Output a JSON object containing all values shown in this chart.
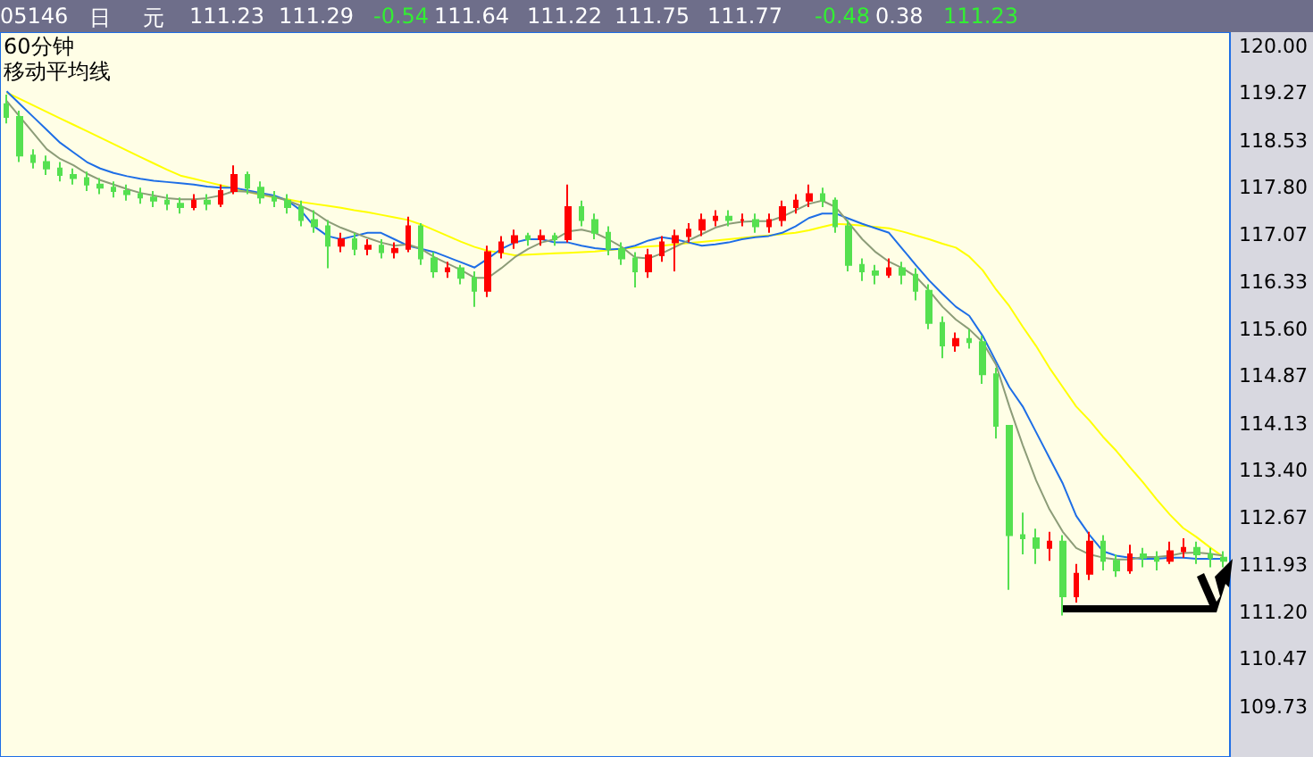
{
  "chart_data": {
    "type": "candlestick",
    "title": "60分钟",
    "subtitle": "移动平均线",
    "annotations": [
      "05146",
      "日",
      "元",
      "111.23",
      "111.29",
      "-0.54",
      "111.64",
      "111.22",
      "111.75",
      "111.77",
      "-0.48",
      "0.38",
      "111.23"
    ],
    "tick_labels": "y",
    "ylim": [
      108.95,
      120.22
    ],
    "yticks": [
      {
        "value": 120,
        "label": "120.00"
      },
      119.27,
      118.53,
      {
        "value": 117.8,
        "label": "117.80"
      },
      117.07,
      116.33,
      {
        "value": 115.6,
        "label": "115.60"
      },
      114.87,
      114.13,
      {
        "value": 113.4,
        "label": "113.40"
      },
      112.67,
      111.93,
      {
        "value": 111.2,
        "label": "111.20"
      },
      110.47,
      109.73
    ],
    "categories": [
      null,
      null,
      null,
      null,
      null,
      null,
      null,
      null,
      null,
      null,
      null,
      null,
      null,
      null,
      null,
      null,
      null,
      null,
      null,
      null,
      null,
      null,
      null,
      null,
      null,
      null,
      null,
      null,
      null,
      null,
      null,
      null,
      null,
      null,
      null,
      null,
      null,
      null,
      null,
      null,
      null,
      null,
      null,
      null,
      null,
      null,
      null,
      null,
      null,
      null,
      null,
      null,
      null,
      null,
      null,
      null,
      null,
      null,
      null,
      null,
      null,
      null,
      null,
      null,
      null,
      null,
      null,
      null,
      null,
      null,
      null,
      null,
      null,
      null,
      null,
      null,
      null,
      null,
      null,
      null,
      null,
      null,
      null,
      null,
      null,
      null,
      null,
      null,
      null,
      null,
      null,
      null
    ],
    "ohlc": [
      [
        119.1,
        119.25,
        118.8,
        118.9
      ],
      [
        118.9,
        119.0,
        118.2,
        118.3
      ],
      [
        118.3,
        118.4,
        118.1,
        118.2
      ],
      [
        118.2,
        118.3,
        118.0,
        118.1
      ],
      [
        118.1,
        118.2,
        117.9,
        118.0
      ],
      [
        118.0,
        118.1,
        117.85,
        117.95
      ],
      [
        117.95,
        118.05,
        117.75,
        117.85
      ],
      [
        117.85,
        117.95,
        117.7,
        117.8
      ],
      [
        117.8,
        117.9,
        117.65,
        117.75
      ],
      [
        117.75,
        117.85,
        117.6,
        117.7
      ],
      [
        117.7,
        117.8,
        117.55,
        117.65
      ],
      [
        117.65,
        117.75,
        117.5,
        117.6
      ],
      [
        117.6,
        117.7,
        117.45,
        117.55
      ],
      [
        117.55,
        117.65,
        117.4,
        117.5
      ],
      [
        117.5,
        117.7,
        117.45,
        117.6
      ],
      [
        117.6,
        117.7,
        117.45,
        117.55
      ],
      [
        117.55,
        117.85,
        117.5,
        117.75
      ],
      [
        117.75,
        118.15,
        117.7,
        118.0
      ],
      [
        118.0,
        118.05,
        117.7,
        117.8
      ],
      [
        117.8,
        117.9,
        117.55,
        117.65
      ],
      [
        117.65,
        117.75,
        117.5,
        117.6
      ],
      [
        117.6,
        117.7,
        117.4,
        117.5
      ],
      [
        117.5,
        117.6,
        117.2,
        117.3
      ],
      [
        117.3,
        117.45,
        117.1,
        117.2
      ],
      [
        117.2,
        117.3,
        116.55,
        116.9
      ],
      [
        116.9,
        117.1,
        116.8,
        117.0
      ],
      [
        117.0,
        117.1,
        116.75,
        116.85
      ],
      [
        116.85,
        117.0,
        116.75,
        116.9
      ],
      [
        116.9,
        117.0,
        116.7,
        116.8
      ],
      [
        116.8,
        116.95,
        116.7,
        116.85
      ],
      [
        116.85,
        117.35,
        116.8,
        117.2
      ],
      [
        117.2,
        117.25,
        116.6,
        116.7
      ],
      [
        116.7,
        116.8,
        116.4,
        116.5
      ],
      [
        116.5,
        116.65,
        116.4,
        116.55
      ],
      [
        116.55,
        116.6,
        116.3,
        116.4
      ],
      [
        116.4,
        116.5,
        115.95,
        116.2
      ],
      [
        116.2,
        116.9,
        116.1,
        116.8
      ],
      [
        116.8,
        117.05,
        116.7,
        116.95
      ],
      [
        116.95,
        117.15,
        116.85,
        117.05
      ],
      [
        117.05,
        117.1,
        116.9,
        117.0
      ],
      [
        117.0,
        117.15,
        116.9,
        117.05
      ],
      [
        117.05,
        117.1,
        116.9,
        117.0
      ],
      [
        117.0,
        117.85,
        116.95,
        117.5
      ],
      [
        117.5,
        117.6,
        117.2,
        117.3
      ],
      [
        117.3,
        117.4,
        117.0,
        117.1
      ],
      [
        117.1,
        117.2,
        116.75,
        116.85
      ],
      [
        116.85,
        116.95,
        116.6,
        116.7
      ],
      [
        116.7,
        116.8,
        116.25,
        116.5
      ],
      [
        116.5,
        116.85,
        116.4,
        116.75
      ],
      [
        116.75,
        117.05,
        116.65,
        116.95
      ],
      [
        116.95,
        117.15,
        116.5,
        117.05
      ],
      [
        117.05,
        117.25,
        116.95,
        117.15
      ],
      [
        117.15,
        117.4,
        117.05,
        117.3
      ],
      [
        117.3,
        117.45,
        117.2,
        117.35
      ],
      [
        117.35,
        117.45,
        117.2,
        117.3
      ],
      [
        117.3,
        117.4,
        117.2,
        117.3
      ],
      [
        117.3,
        117.4,
        117.1,
        117.2
      ],
      [
        117.2,
        117.4,
        117.1,
        117.3
      ],
      [
        117.3,
        117.6,
        117.2,
        117.5
      ],
      [
        117.5,
        117.7,
        117.4,
        117.6
      ],
      [
        117.6,
        117.85,
        117.5,
        117.7
      ],
      [
        117.7,
        117.8,
        117.5,
        117.6
      ],
      [
        117.6,
        117.65,
        117.1,
        117.2
      ],
      [
        117.2,
        117.3,
        116.5,
        116.6
      ],
      [
        116.6,
        116.7,
        116.35,
        116.5
      ],
      [
        116.5,
        116.6,
        116.3,
        116.45
      ],
      [
        116.45,
        116.7,
        116.4,
        116.55
      ],
      [
        116.55,
        116.65,
        116.3,
        116.45
      ],
      [
        116.45,
        116.55,
        116.05,
        116.2
      ],
      [
        116.2,
        116.3,
        115.6,
        115.7
      ],
      [
        115.7,
        115.8,
        115.15,
        115.35
      ],
      [
        115.35,
        115.55,
        115.25,
        115.45
      ],
      [
        115.45,
        115.6,
        115.3,
        115.4
      ],
      [
        115.4,
        115.5,
        114.75,
        114.9
      ],
      [
        114.9,
        115.0,
        113.9,
        114.1
      ],
      [
        114.1,
        114.1,
        111.55,
        112.4
      ],
      [
        112.4,
        112.75,
        112.1,
        112.35
      ],
      [
        112.35,
        112.5,
        111.95,
        112.2
      ],
      [
        112.2,
        112.45,
        112.0,
        112.3
      ],
      [
        112.3,
        112.4,
        111.15,
        111.45
      ],
      [
        111.45,
        111.95,
        111.35,
        111.8
      ],
      [
        111.8,
        112.45,
        111.7,
        112.3
      ],
      [
        112.3,
        112.4,
        111.85,
        112.0
      ],
      [
        112.0,
        112.1,
        111.75,
        111.85
      ],
      [
        111.85,
        112.25,
        111.8,
        112.1
      ],
      [
        112.1,
        112.2,
        111.9,
        112.05
      ],
      [
        112.05,
        112.15,
        111.85,
        112.0
      ],
      [
        112.0,
        112.3,
        111.95,
        112.15
      ],
      [
        112.15,
        112.35,
        112.05,
        112.2
      ],
      [
        112.2,
        112.3,
        111.95,
        112.1
      ],
      [
        112.1,
        112.2,
        111.9,
        112.05
      ],
      [
        112.05,
        112.15,
        111.9,
        112.0
      ]
    ],
    "series": [
      {
        "type": "line",
        "color": "#ffff00",
        "values": [
          119.28,
          119.18,
          119.08,
          118.98,
          118.88,
          118.78,
          118.68,
          118.58,
          118.48,
          118.38,
          118.28,
          118.18,
          118.08,
          117.99,
          117.94,
          117.89,
          117.84,
          117.79,
          117.74,
          117.69,
          117.65,
          117.62,
          117.58,
          117.55,
          117.52,
          117.49,
          117.45,
          117.42,
          117.38,
          117.34,
          117.3,
          117.23,
          117.14,
          117.05,
          116.96,
          116.88,
          116.82,
          116.79,
          116.75,
          116.76,
          116.77,
          116.78,
          116.79,
          116.8,
          116.81,
          116.83,
          116.85,
          116.87,
          116.89,
          116.9,
          116.92,
          116.94,
          116.96,
          116.98,
          117.0,
          117.02,
          117.04,
          117.06,
          117.08,
          117.1,
          117.14,
          117.19,
          117.24,
          117.23,
          117.21,
          117.19,
          117.17,
          117.12,
          117.06,
          117.0,
          116.93,
          116.87,
          116.73,
          116.52,
          116.22,
          115.96,
          115.64,
          115.34,
          115.0,
          114.7,
          114.4,
          114.18,
          113.93,
          113.71,
          113.46,
          113.22,
          112.96,
          112.72,
          112.51,
          112.37,
          112.21,
          112.06
        ]
      },
      {
        "type": "line",
        "color": "#1e6ee6",
        "values": [
          119.3,
          119.1,
          118.9,
          118.7,
          118.5,
          118.35,
          118.2,
          118.1,
          118.03,
          117.98,
          117.94,
          117.91,
          117.89,
          117.87,
          117.85,
          117.82,
          117.8,
          117.8,
          117.76,
          117.72,
          117.68,
          117.6,
          117.45,
          117.2,
          117.05,
          117.0,
          117.05,
          117.1,
          117.1,
          117.0,
          116.9,
          116.85,
          116.8,
          116.72,
          116.64,
          116.56,
          116.7,
          116.85,
          116.95,
          117.0,
          117.0,
          116.95,
          116.95,
          116.9,
          116.86,
          116.84,
          116.85,
          116.9,
          116.98,
          117.03,
          117.0,
          116.95,
          116.9,
          116.92,
          116.95,
          117.0,
          117.03,
          117.05,
          117.1,
          117.2,
          117.33,
          117.4,
          117.4,
          117.32,
          117.24,
          117.17,
          117.1,
          116.85,
          116.6,
          116.36,
          116.15,
          115.95,
          115.81,
          115.5,
          115.1,
          114.7,
          114.4,
          114.0,
          113.6,
          113.2,
          112.7,
          112.4,
          112.15,
          112.08,
          112.05,
          112.03,
          112.03,
          112.05,
          112.05,
          112.03,
          112.03,
          112.03
        ]
      },
      {
        "type": "line",
        "color": "#8c9c78",
        "values": [
          119.15,
          118.9,
          118.65,
          118.4,
          118.25,
          118.15,
          118.02,
          117.92,
          117.85,
          117.78,
          117.72,
          117.68,
          117.64,
          117.62,
          117.62,
          117.64,
          117.68,
          117.75,
          117.74,
          117.7,
          117.66,
          117.6,
          117.52,
          117.42,
          117.28,
          117.18,
          117.1,
          117.02,
          116.95,
          116.9,
          116.92,
          116.85,
          116.72,
          116.62,
          116.52,
          116.4,
          116.4,
          116.55,
          116.72,
          116.85,
          116.95,
          117.0,
          117.12,
          117.15,
          117.1,
          117.0,
          116.88,
          116.72,
          116.7,
          116.78,
          116.88,
          116.98,
          117.08,
          117.18,
          117.24,
          117.27,
          117.28,
          117.28,
          117.35,
          117.45,
          117.55,
          117.6,
          117.5,
          117.25,
          117.0,
          116.8,
          116.65,
          116.55,
          116.42,
          116.2,
          115.95,
          115.75,
          115.6,
          115.4,
          115.05,
          114.4,
          113.8,
          113.25,
          112.8,
          112.45,
          112.2,
          112.1,
          112.05,
          112.02,
          112.02,
          112.06,
          112.06,
          112.08,
          112.12,
          112.13,
          112.11,
          112.08
        ]
      }
    ]
  }
}
